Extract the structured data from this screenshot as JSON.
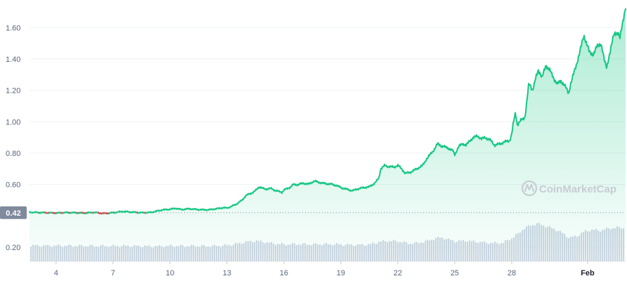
{
  "watermark": {
    "text": "CoinMarketCap"
  },
  "colors": {
    "line": "#16c784",
    "area_top": "#16c784",
    "volume": "#cfd6e4",
    "baseline_badge": "#808a9d",
    "grid": "#eff2f5",
    "below_baseline": "#ea3943"
  },
  "baseline": {
    "label": "0.42",
    "value": 0.42
  },
  "chart_data": {
    "type": "area",
    "title": "",
    "xlabel": "",
    "ylabel": "",
    "ylim": [
      0.11,
      1.74
    ],
    "y_ticks": [
      {
        "value": 0.2,
        "label": "0.20"
      },
      {
        "value": 0.6,
        "label": "0.60"
      },
      {
        "value": 0.8,
        "label": "0.80"
      },
      {
        "value": 1.0,
        "label": "1.00"
      },
      {
        "value": 1.2,
        "label": "1.20"
      },
      {
        "value": 1.4,
        "label": "1.40"
      },
      {
        "value": 1.6,
        "label": "1.60"
      }
    ],
    "x_range": [
      2.6,
      34.0
    ],
    "x_ticks": [
      {
        "value": 4,
        "label": "4"
      },
      {
        "value": 7,
        "label": "7"
      },
      {
        "value": 10,
        "label": "10"
      },
      {
        "value": 13,
        "label": "13"
      },
      {
        "value": 16,
        "label": "16"
      },
      {
        "value": 19,
        "label": "19"
      },
      {
        "value": 22,
        "label": "22"
      },
      {
        "value": 25,
        "label": "25"
      },
      {
        "value": 28,
        "label": "28"
      },
      {
        "value": 32,
        "label": "Feb"
      }
    ],
    "series": [
      {
        "values": [
          [
            2.6,
            0.423
          ],
          [
            3.5,
            0.42
          ],
          [
            4.0,
            0.418
          ],
          [
            4.5,
            0.421
          ],
          [
            5.0,
            0.42
          ],
          [
            5.5,
            0.418
          ],
          [
            6.0,
            0.422
          ],
          [
            6.5,
            0.415
          ],
          [
            7.0,
            0.42
          ],
          [
            7.5,
            0.428
          ],
          [
            8.0,
            0.424
          ],
          [
            8.5,
            0.42
          ],
          [
            9.0,
            0.422
          ],
          [
            9.3,
            0.43
          ],
          [
            9.6,
            0.438
          ],
          [
            10.0,
            0.442
          ],
          [
            10.3,
            0.448
          ],
          [
            10.6,
            0.44
          ],
          [
            11.0,
            0.445
          ],
          [
            11.5,
            0.44
          ],
          [
            12.0,
            0.438
          ],
          [
            12.5,
            0.446
          ],
          [
            12.8,
            0.452
          ],
          [
            13.0,
            0.45
          ],
          [
            13.2,
            0.458
          ],
          [
            13.5,
            0.475
          ],
          [
            13.8,
            0.5
          ],
          [
            14.0,
            0.53
          ],
          [
            14.3,
            0.545
          ],
          [
            14.5,
            0.56
          ],
          [
            14.7,
            0.585
          ],
          [
            15.0,
            0.57
          ],
          [
            15.3,
            0.575
          ],
          [
            15.6,
            0.56
          ],
          [
            15.9,
            0.55
          ],
          [
            16.0,
            0.565
          ],
          [
            16.3,
            0.58
          ],
          [
            16.5,
            0.6
          ],
          [
            16.7,
            0.598
          ],
          [
            17.0,
            0.608
          ],
          [
            17.3,
            0.602
          ],
          [
            17.6,
            0.622
          ],
          [
            17.9,
            0.612
          ],
          [
            18.2,
            0.605
          ],
          [
            18.5,
            0.602
          ],
          [
            18.8,
            0.592
          ],
          [
            19.0,
            0.58
          ],
          [
            19.3,
            0.57
          ],
          [
            19.6,
            0.56
          ],
          [
            19.9,
            0.572
          ],
          [
            20.2,
            0.58
          ],
          [
            20.5,
            0.585
          ],
          [
            20.8,
            0.61
          ],
          [
            21.0,
            0.64
          ],
          [
            21.1,
            0.7
          ],
          [
            21.3,
            0.72
          ],
          [
            21.5,
            0.715
          ],
          [
            21.8,
            0.71
          ],
          [
            22.0,
            0.722
          ],
          [
            22.2,
            0.7
          ],
          [
            22.4,
            0.67
          ],
          [
            22.7,
            0.68
          ],
          [
            23.0,
            0.7
          ],
          [
            23.3,
            0.72
          ],
          [
            23.5,
            0.76
          ],
          [
            23.7,
            0.79
          ],
          [
            23.9,
            0.82
          ],
          [
            24.1,
            0.86
          ],
          [
            24.3,
            0.845
          ],
          [
            24.6,
            0.835
          ],
          [
            24.9,
            0.815
          ],
          [
            25.0,
            0.79
          ],
          [
            25.2,
            0.84
          ],
          [
            25.4,
            0.86
          ],
          [
            25.6,
            0.85
          ],
          [
            25.8,
            0.88
          ],
          [
            26.0,
            0.9
          ],
          [
            26.2,
            0.91
          ],
          [
            26.4,
            0.89
          ],
          [
            26.6,
            0.9
          ],
          [
            26.9,
            0.88
          ],
          [
            27.1,
            0.85
          ],
          [
            27.4,
            0.86
          ],
          [
            27.6,
            0.87
          ],
          [
            27.9,
            0.88
          ],
          [
            28.0,
            0.92
          ],
          [
            28.1,
            1.0
          ],
          [
            28.2,
            1.06
          ],
          [
            28.3,
            0.98
          ],
          [
            28.5,
            1.01
          ],
          [
            28.7,
            1.03
          ],
          [
            28.8,
            1.13
          ],
          [
            28.9,
            1.24
          ],
          [
            29.0,
            1.23
          ],
          [
            29.1,
            1.2
          ],
          [
            29.3,
            1.29
          ],
          [
            29.4,
            1.33
          ],
          [
            29.5,
            1.31
          ],
          [
            29.6,
            1.28
          ],
          [
            29.8,
            1.36
          ],
          [
            30.0,
            1.33
          ],
          [
            30.2,
            1.28
          ],
          [
            30.4,
            1.24
          ],
          [
            30.6,
            1.26
          ],
          [
            30.8,
            1.23
          ],
          [
            31.0,
            1.18
          ],
          [
            31.1,
            1.24
          ],
          [
            31.2,
            1.28
          ],
          [
            31.4,
            1.36
          ],
          [
            31.6,
            1.45
          ],
          [
            31.8,
            1.55
          ],
          [
            32.0,
            1.48
          ],
          [
            32.1,
            1.44
          ],
          [
            32.3,
            1.43
          ],
          [
            32.5,
            1.48
          ],
          [
            32.7,
            1.5
          ],
          [
            32.9,
            1.38
          ],
          [
            33.0,
            1.35
          ],
          [
            33.2,
            1.45
          ],
          [
            33.4,
            1.57
          ],
          [
            33.6,
            1.56
          ],
          [
            33.7,
            1.53
          ],
          [
            33.8,
            1.61
          ],
          [
            33.9,
            1.67
          ],
          [
            34.0,
            1.72
          ]
        ]
      }
    ],
    "volume": {
      "values": [
        [
          2.6,
          0.21
        ],
        [
          4.0,
          0.21
        ],
        [
          6.0,
          0.208
        ],
        [
          8.0,
          0.208
        ],
        [
          9.0,
          0.205
        ],
        [
          10.0,
          0.209
        ],
        [
          11.0,
          0.208
        ],
        [
          12.0,
          0.207
        ],
        [
          12.5,
          0.209
        ],
        [
          13.0,
          0.212
        ],
        [
          13.5,
          0.222
        ],
        [
          14.0,
          0.235
        ],
        [
          14.5,
          0.24
        ],
        [
          15.0,
          0.232
        ],
        [
          15.5,
          0.222
        ],
        [
          16.0,
          0.218
        ],
        [
          16.5,
          0.22
        ],
        [
          17.0,
          0.219
        ],
        [
          17.5,
          0.218
        ],
        [
          18.0,
          0.22
        ],
        [
          18.5,
          0.219
        ],
        [
          19.0,
          0.217
        ],
        [
          19.5,
          0.215
        ],
        [
          20.0,
          0.216
        ],
        [
          20.5,
          0.218
        ],
        [
          21.0,
          0.235
        ],
        [
          21.5,
          0.24
        ],
        [
          22.0,
          0.238
        ],
        [
          22.5,
          0.224
        ],
        [
          23.0,
          0.227
        ],
        [
          23.5,
          0.24
        ],
        [
          24.0,
          0.258
        ],
        [
          24.3,
          0.262
        ],
        [
          24.6,
          0.25
        ],
        [
          25.0,
          0.238
        ],
        [
          25.5,
          0.242
        ],
        [
          26.0,
          0.236
        ],
        [
          26.5,
          0.23
        ],
        [
          27.0,
          0.226
        ],
        [
          27.5,
          0.228
        ],
        [
          28.0,
          0.26
        ],
        [
          28.3,
          0.285
        ],
        [
          28.6,
          0.32
        ],
        [
          29.0,
          0.34
        ],
        [
          29.3,
          0.35
        ],
        [
          29.6,
          0.34
        ],
        [
          30.0,
          0.325
        ],
        [
          30.5,
          0.3
        ],
        [
          31.0,
          0.26
        ],
        [
          31.4,
          0.272
        ],
        [
          31.8,
          0.3
        ],
        [
          32.2,
          0.312
        ],
        [
          32.6,
          0.305
        ],
        [
          33.0,
          0.318
        ],
        [
          33.5,
          0.325
        ],
        [
          34.0,
          0.322
        ]
      ]
    }
  }
}
